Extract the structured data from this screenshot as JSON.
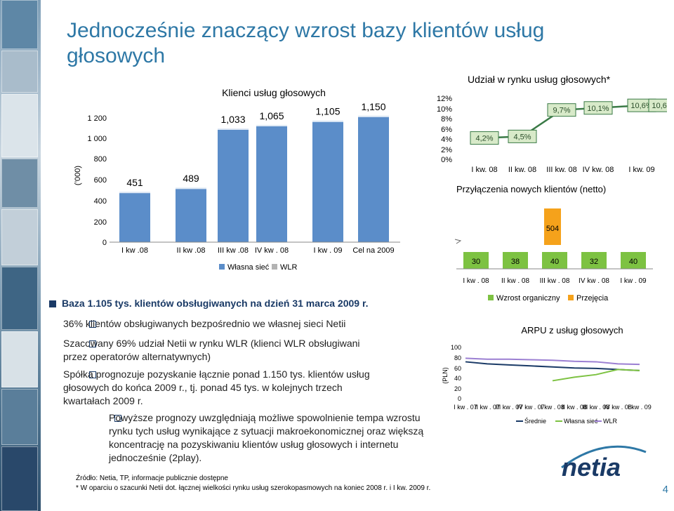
{
  "title": {
    "line1": "Jednocześnie znaczący wzrost bazy klientów usług",
    "line2": "głosowych"
  },
  "colors": {
    "accent": "#2e78a6",
    "bar_own": "#5b8dc9",
    "bar_wlr": "#b3b3b3",
    "share": "#3a7a46",
    "orange": "#f5a21b",
    "green": "#7dc242",
    "navy": "#1a3a66"
  },
  "chart_data": [
    {
      "type": "bar",
      "title": "Klienci usług głosowych",
      "ylabel": "(’000)",
      "ylim": [
        0,
        1200
      ],
      "yticks": [
        "1 200",
        "1 000",
        "800",
        "600",
        "400",
        "200",
        "0"
      ],
      "categories": [
        "I kw .08",
        "II kw .08",
        "III kw .08",
        "IV kw . 08",
        "I kw . 09",
        "Cel na 2009"
      ],
      "value_labels": [
        "451",
        "489",
        "1,033",
        "1,065",
        "1,105",
        "1,150"
      ],
      "values": [
        451,
        489,
        1033,
        1065,
        1105,
        1150
      ],
      "series": [
        {
          "name": "Własna sieć"
        },
        {
          "name": "WLR"
        }
      ],
      "legend": "bottom"
    },
    {
      "type": "line",
      "title": "Udział w rynku usług głosowych*",
      "yticks": [
        "12%",
        "10%",
        "8%",
        "6%",
        "4%",
        "2%",
        "0%"
      ],
      "ylim": [
        0,
        12
      ],
      "categories": [
        "I kw. 08",
        "II kw. 08",
        "III kw. 08",
        "IV kw. 08",
        "I kw. 09"
      ],
      "extra_point_label": "10,6%",
      "values": [
        4.2,
        4.5,
        9.7,
        10.1,
        10.6
      ],
      "value_labels": [
        "4,2%",
        "4,5%",
        "9,7%",
        "10,1%",
        "10,6%"
      ]
    },
    {
      "type": "bar",
      "title": "Przyłączenia nowych klientów (netto)",
      "categories": [
        "I kw . 08",
        "II kw . 08",
        "III kw . 08",
        "IV kw . 08",
        "I kw . 09"
      ],
      "values": [
        30,
        38,
        40,
        32,
        40
      ],
      "value_labels": [
        "30",
        "38",
        "40",
        "32",
        "40"
      ],
      "extra_bar": {
        "value": 504,
        "label": "504"
      }
    },
    {
      "type": "line",
      "title": "ARPU z usług głosowych",
      "ylabel": "(PLN)",
      "ylim": [
        0,
        100
      ],
      "yticks": [
        "100",
        "80",
        "60",
        "40",
        "20",
        "0"
      ],
      "categories": [
        "I kw . 07",
        "II kw . 07",
        "III kw . 07",
        "IV kw . 07",
        "I kw . 08",
        "II kw . 08",
        "III kw . 08",
        "IV kw . 08",
        "I kw . 09"
      ],
      "series": [
        {
          "name": "Średnie",
          "values": [
            72,
            68,
            66,
            64,
            62,
            60,
            59,
            57,
            55
          ]
        },
        {
          "name": "Własna sieć",
          "values": [
            null,
            null,
            null,
            null,
            35,
            42,
            47,
            57,
            55
          ]
        },
        {
          "name": "WLR",
          "values": [
            79,
            77,
            77,
            76,
            75,
            73,
            72,
            68,
            67
          ]
        }
      ],
      "legend": "bottom"
    }
  ],
  "legend_top": {
    "organic": "Wzrost organiczny",
    "acq": "Przejęcia"
  },
  "main_bullet": "Baza 1.105 tys. klientów obsługiwanych na dzień 31 marca 2009 r.",
  "bullets": [
    "36% klientów obsługiwanych bezpośrednio we własnej sieci Netii",
    "Szacowany 69% udział Netii w rynku WLR (klienci WLR obsługiwani przez operatorów alternatywnych)",
    "Spółka prognozuje pozyskanie łącznie ponad 1.150 tys. klientów usług głosowych do końca 2009 r., tj. ponad 45 tys. w kolejnych trzech kwartałach 2009 r."
  ],
  "sub_bullet": "Powyższe prognozy uwzględniają możliwe spowolnienie tempa wzrostu rynku tych usług wynikające z sytuacji makroekonomicznej oraz większą koncentrację na pozyskiwaniu klientów usług głosowych i internetu jednocześnie (2play).",
  "footnotes": {
    "source": "Źródło: Netia, TP, informacje publicznie dostępne",
    "note": "*  W oparciu o szacunki Netii dot. łącznej wielkości rynku usług szerokopasmowych na koniec 2008 r. i I kw. 2009 r."
  },
  "logo": {
    "text": "netia"
  },
  "page_number": "4"
}
